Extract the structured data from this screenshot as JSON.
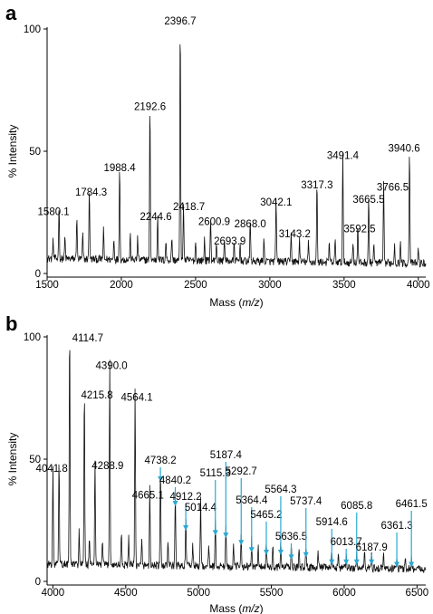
{
  "chart_data": [
    {
      "panel": "a",
      "type": "line",
      "xlabel": "Mass (m/z)",
      "ylabel": "% Intensity",
      "xlim": [
        1500,
        4050
      ],
      "ylim": [
        0,
        100
      ],
      "xticks": [
        1500,
        2000,
        2500,
        3000,
        3500,
        4000
      ],
      "yticks": [
        0,
        50,
        100
      ],
      "peaks": [
        {
          "x": 1580.1,
          "y": 22,
          "label": "1580.1"
        },
        {
          "x": 1784.3,
          "y": 30,
          "label": "1784.3"
        },
        {
          "x": 1988.4,
          "y": 40,
          "label": "1988.4"
        },
        {
          "x": 2192.6,
          "y": 65,
          "label": "2192.6"
        },
        {
          "x": 2244.6,
          "y": 20,
          "label": "2244.6"
        },
        {
          "x": 2396.7,
          "y": 100,
          "label": "2396.7"
        },
        {
          "x": 2418.7,
          "y": 24,
          "label": "2418.7"
        },
        {
          "x": 2600.9,
          "y": 18,
          "label": "2600.9"
        },
        {
          "x": 2693.9,
          "y": 10,
          "label": "2693.9"
        },
        {
          "x": 2868.0,
          "y": 17,
          "label": "2868.0"
        },
        {
          "x": 3042.1,
          "y": 26,
          "label": "3042.1"
        },
        {
          "x": 3143.2,
          "y": 13,
          "label": "3143.2"
        },
        {
          "x": 3317.3,
          "y": 33,
          "label": "3317.3"
        },
        {
          "x": 3491.4,
          "y": 45,
          "label": "3491.4"
        },
        {
          "x": 3592.5,
          "y": 15,
          "label": "3592.5"
        },
        {
          "x": 3665.5,
          "y": 27,
          "label": "3665.5"
        },
        {
          "x": 3766.5,
          "y": 32,
          "label": "3766.5"
        },
        {
          "x": 3940.6,
          "y": 48,
          "label": "3940.6"
        }
      ],
      "minor_peaks": [
        [
          1540,
          8
        ],
        [
          1620,
          9
        ],
        [
          1700,
          18
        ],
        [
          1740,
          10
        ],
        [
          1880,
          12
        ],
        [
          1950,
          9
        ],
        [
          2060,
          10
        ],
        [
          2110,
          9
        ],
        [
          2300,
          8
        ],
        [
          2340,
          10
        ],
        [
          2500,
          8
        ],
        [
          2560,
          9
        ],
        [
          2640,
          8
        ],
        [
          2760,
          8
        ],
        [
          2800,
          7
        ],
        [
          2960,
          9
        ],
        [
          3200,
          9
        ],
        [
          3260,
          8
        ],
        [
          3400,
          8
        ],
        [
          3440,
          9
        ],
        [
          3560,
          9
        ],
        [
          3700,
          8
        ],
        [
          3840,
          8
        ],
        [
          3880,
          9
        ],
        [
          4000,
          6
        ]
      ]
    },
    {
      "panel": "b",
      "type": "line",
      "xlabel": "Mass (m/z)",
      "ylabel": "% Intensity",
      "xlim": [
        3960,
        6560
      ],
      "ylim": [
        0,
        100
      ],
      "xticks": [
        4000,
        4500,
        5000,
        5500,
        6000,
        6500
      ],
      "yticks": [
        0,
        50,
        100
      ],
      "peaks": [
        {
          "x": 4041.8,
          "y": 43,
          "label": "4041.8",
          "arrow": false
        },
        {
          "x": 4114.7,
          "y": 100,
          "label": "4114.7",
          "arrow": false
        },
        {
          "x": 4215.8,
          "y": 73,
          "label": "4215.8",
          "arrow": false
        },
        {
          "x": 4288.9,
          "y": 44,
          "label": "4288.9",
          "arrow": false
        },
        {
          "x": 4390.0,
          "y": 85,
          "label": "4390.0",
          "arrow": false
        },
        {
          "x": 4564.1,
          "y": 72,
          "label": "4564.1",
          "arrow": false
        },
        {
          "x": 4665.1,
          "y": 32,
          "label": "4665.1",
          "arrow": false
        },
        {
          "x": 4738.2,
          "y": 40,
          "label": "4738.2",
          "arrow": true
        },
        {
          "x": 4840.2,
          "y": 30,
          "label": "4840.2",
          "arrow": true
        },
        {
          "x": 4912.2,
          "y": 20,
          "label": "4912.2",
          "arrow": true
        },
        {
          "x": 5014.4,
          "y": 27,
          "label": "5014.4",
          "arrow": false
        },
        {
          "x": 5115.3,
          "y": 18,
          "label": "5115.3",
          "arrow": true
        },
        {
          "x": 5187.4,
          "y": 17,
          "label": "5187.4",
          "arrow": true
        },
        {
          "x": 5292.7,
          "y": 14,
          "label": "5292.7",
          "arrow": true
        },
        {
          "x": 5364.4,
          "y": 11,
          "label": "5364.4",
          "arrow": true
        },
        {
          "x": 5465.2,
          "y": 10,
          "label": "5465.2",
          "arrow": true
        },
        {
          "x": 5564.3,
          "y": 10,
          "label": "5564.3",
          "arrow": true
        },
        {
          "x": 5636.5,
          "y": 8,
          "label": "5636.5",
          "arrow": true
        },
        {
          "x": 5737.4,
          "y": 9,
          "label": "5737.4",
          "arrow": true
        },
        {
          "x": 5914.6,
          "y": 6,
          "label": "5914.6",
          "arrow": true
        },
        {
          "x": 6013.7,
          "y": 6,
          "label": "6013.7",
          "arrow": true
        },
        {
          "x": 6085.8,
          "y": 6,
          "label": "6085.8",
          "arrow": true
        },
        {
          "x": 6187.9,
          "y": 6,
          "label": "6187.9",
          "arrow": true
        },
        {
          "x": 6361.3,
          "y": 5,
          "label": "6361.3",
          "arrow": true
        },
        {
          "x": 6461.5,
          "y": 5,
          "label": "6461.5",
          "arrow": true
        }
      ],
      "minor_peaks": [
        [
          4000,
          40
        ],
        [
          4180,
          14
        ],
        [
          4250,
          12
        ],
        [
          4340,
          10
        ],
        [
          4470,
          14
        ],
        [
          4520,
          12
        ],
        [
          4610,
          10
        ],
        [
          4790,
          10
        ],
        [
          4960,
          10
        ],
        [
          5070,
          9
        ],
        [
          5240,
          8
        ],
        [
          5410,
          8
        ],
        [
          5510,
          8
        ],
        [
          5690,
          7
        ],
        [
          5820,
          8
        ],
        [
          5960,
          7
        ],
        [
          6140,
          7
        ],
        [
          6270,
          6
        ],
        [
          6420,
          6
        ]
      ]
    }
  ]
}
